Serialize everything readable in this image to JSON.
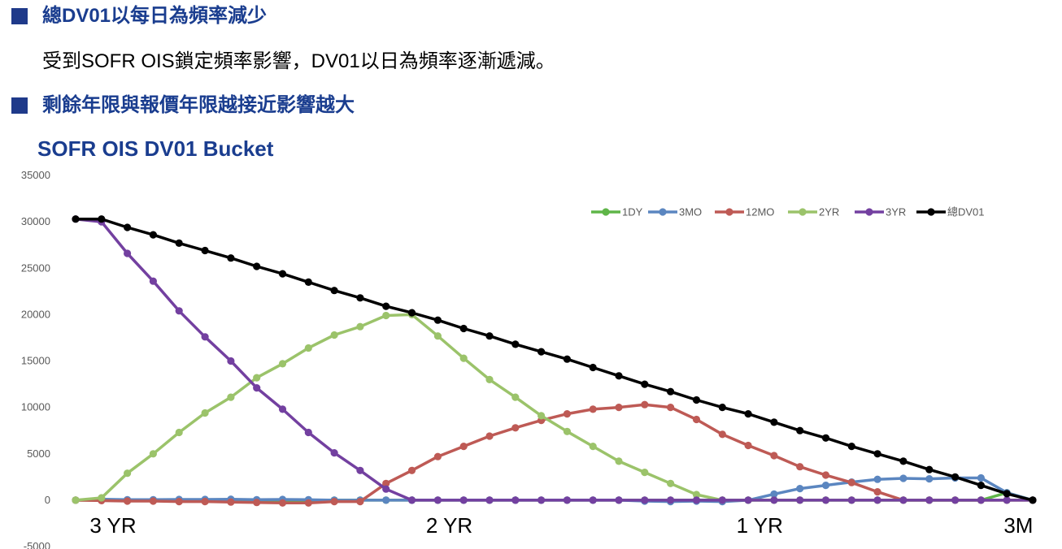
{
  "headline1": "總DV01以每日為頻率減少",
  "body1": "受到SOFR OIS鎖定頻率影響，DV01以日為頻率逐漸遞減。",
  "headline2": "剩餘年限與報價年限越接近影響越大",
  "chart_title": "SOFR OIS DV01 Bucket",
  "chart_data": {
    "type": "line",
    "ylim": [
      -5000,
      35000
    ],
    "yticks": [
      -5000,
      0,
      5000,
      10000,
      15000,
      20000,
      25000,
      30000,
      35000
    ],
    "x_count": 38,
    "x_labels": [
      {
        "index": 0,
        "label": "3 YR"
      },
      {
        "index": 13,
        "label": "2 YR"
      },
      {
        "index": 25,
        "label": "1 YR"
      },
      {
        "index": 35,
        "label": "3M"
      }
    ],
    "legend_position": "top-right",
    "grid": false,
    "series": [
      {
        "name": "1DY",
        "color": "#5fb548",
        "values": [
          0,
          0,
          0,
          0,
          0,
          0,
          0,
          0,
          0,
          0,
          0,
          0,
          0,
          0,
          0,
          0,
          0,
          0,
          0,
          0,
          0,
          0,
          0,
          0,
          0,
          0,
          0,
          0,
          0,
          0,
          0,
          0,
          0,
          0,
          0,
          0,
          800,
          0
        ]
      },
      {
        "name": "3MO",
        "color": "#5b86c0",
        "values": [
          0,
          100,
          50,
          50,
          80,
          80,
          100,
          50,
          80,
          50,
          0,
          0,
          0,
          0,
          0,
          0,
          0,
          0,
          0,
          0,
          0,
          0,
          -100,
          -150,
          -100,
          -150,
          0,
          650,
          1250,
          1600,
          1950,
          2250,
          2350,
          2300,
          2400,
          2400,
          800,
          0
        ]
      },
      {
        "name": "12MO",
        "color": "#be5a55",
        "values": [
          0,
          -50,
          -100,
          -100,
          -150,
          -150,
          -200,
          -250,
          -300,
          -300,
          -150,
          -150,
          1800,
          3200,
          4700,
          5800,
          6900,
          7800,
          8600,
          9300,
          9800,
          10000,
          10300,
          10000,
          8700,
          7100,
          5900,
          4800,
          3600,
          2700,
          1900,
          900,
          0,
          0,
          0,
          0,
          0,
          0
        ]
      },
      {
        "name": "2YR",
        "color": "#9bc36a",
        "values": [
          0,
          250,
          2900,
          5000,
          7300,
          9400,
          11100,
          13200,
          14700,
          16400,
          17800,
          18700,
          19900,
          20000,
          17700,
          15300,
          13000,
          11100,
          9100,
          7400,
          5800,
          4200,
          3000,
          1800,
          600,
          0,
          0,
          0,
          0,
          0,
          0,
          0,
          0,
          0,
          0,
          0,
          0,
          0
        ]
      },
      {
        "name": "3YR",
        "color": "#7340a0",
        "values": [
          30300,
          30000,
          26600,
          23600,
          20400,
          17600,
          15000,
          12100,
          9800,
          7300,
          5100,
          3200,
          1200,
          0,
          0,
          0,
          0,
          0,
          0,
          0,
          0,
          0,
          0,
          0,
          0,
          0,
          0,
          0,
          0,
          0,
          0,
          0,
          0,
          0,
          0,
          0,
          0,
          0
        ]
      },
      {
        "name": "總DV01",
        "color": "#000000",
        "values": [
          30300,
          30300,
          29400,
          28600,
          27700,
          26900,
          26100,
          25200,
          24400,
          23500,
          22600,
          21800,
          20900,
          20200,
          19400,
          18500,
          17700,
          16800,
          16000,
          15200,
          14300,
          13400,
          12500,
          11700,
          10800,
          10000,
          9300,
          8400,
          7500,
          6700,
          5800,
          5000,
          4200,
          3300,
          2500,
          1600,
          700,
          0
        ]
      }
    ]
  }
}
